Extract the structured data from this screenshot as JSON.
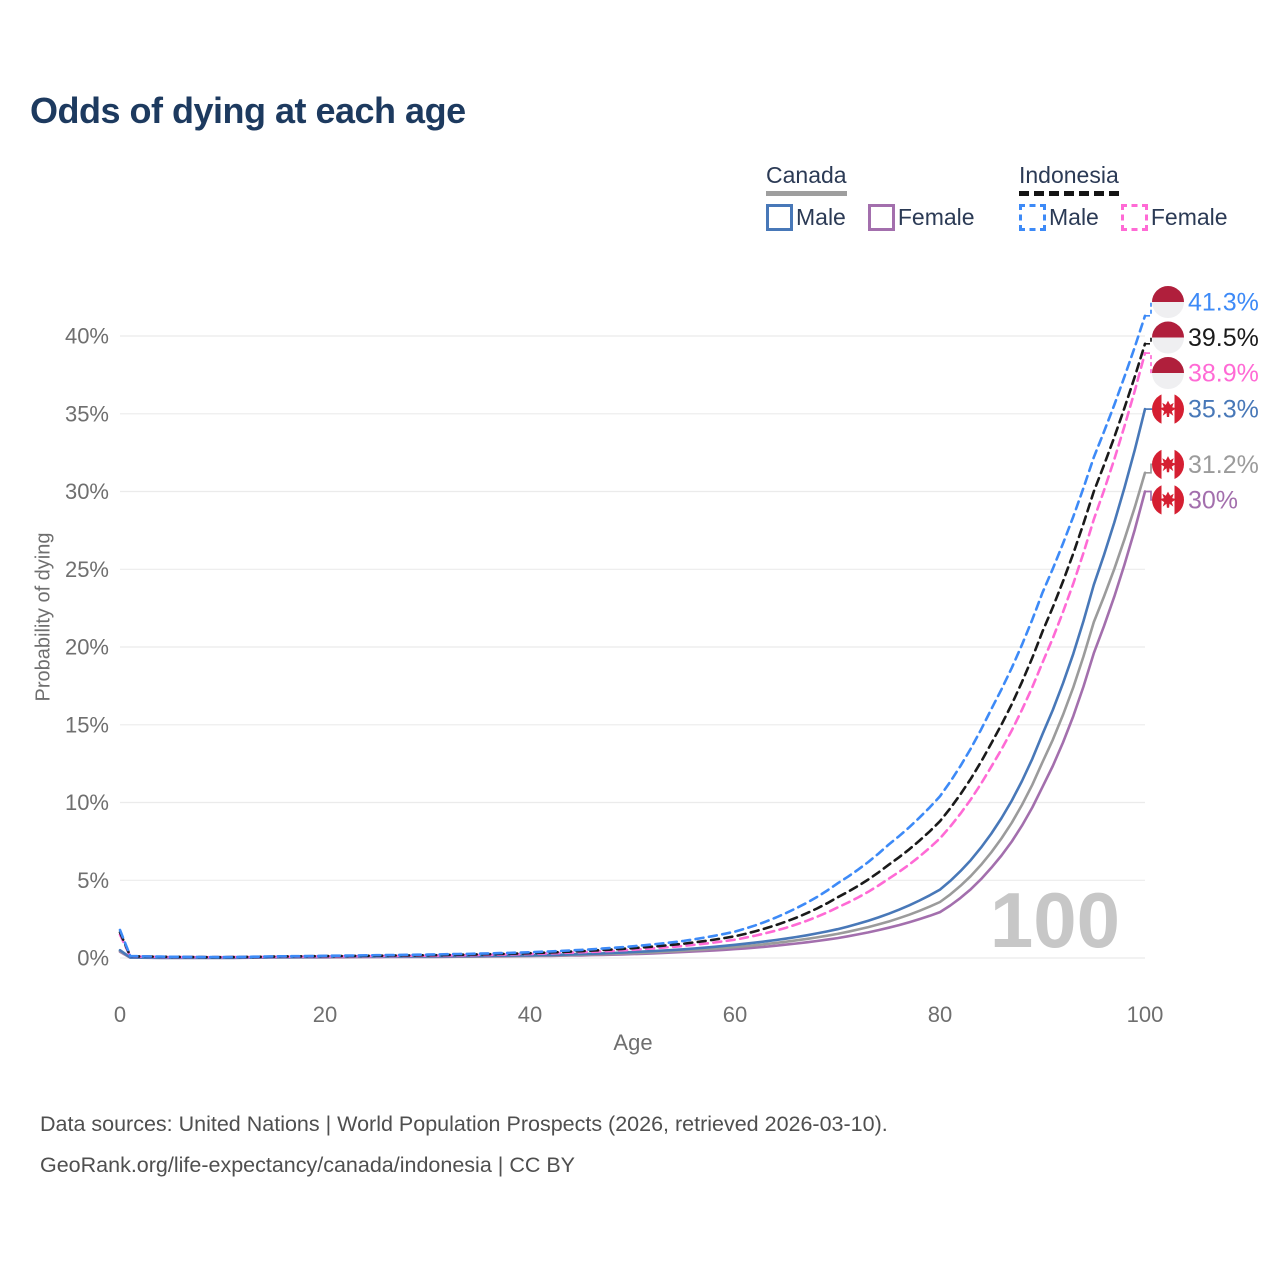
{
  "title": "Odds of dying at each age",
  "legend": {
    "groups": [
      {
        "label": "Canada",
        "line_style": "solid",
        "underline_color": "#9e9e9e",
        "items": [
          {
            "label": "Male",
            "color": "#4878b8",
            "dash": false
          },
          {
            "label": "Female",
            "color": "#a36fad",
            "dash": false
          }
        ]
      },
      {
        "label": "Indonesia",
        "line_style": "dashed",
        "underline_color": "#141414",
        "items": [
          {
            "label": "Male",
            "color": "#3d8af7",
            "dash": true
          },
          {
            "label": "Female",
            "color": "#ff6ad5",
            "dash": true
          }
        ]
      }
    ]
  },
  "watermark_age": "100",
  "footer": {
    "line1": "Data sources: United Nations | World Population Prospects (2026, retrieved 2026-03-10).",
    "line2": "GeoRank.org/life-expectancy/canada/indonesia | CC BY"
  },
  "chart_data": {
    "type": "line",
    "title": "Odds of dying at each age",
    "xlabel": "Age",
    "ylabel": "Probability of dying",
    "xlim": [
      0,
      100
    ],
    "ylim_percent": [
      0,
      42
    ],
    "grid": true,
    "legend_position": "top-right",
    "xticks": [
      0,
      20,
      40,
      60,
      80,
      100
    ],
    "ytick_values": [
      0,
      5,
      10,
      15,
      20,
      25,
      30,
      35,
      40
    ],
    "yticks": [
      "0%",
      "5%",
      "10%",
      "15%",
      "20%",
      "25%",
      "30%",
      "35%",
      "40%"
    ],
    "x": [
      0,
      1,
      5,
      10,
      15,
      20,
      25,
      30,
      35,
      40,
      45,
      50,
      55,
      60,
      65,
      70,
      75,
      80,
      85,
      90,
      95,
      100
    ],
    "series": [
      {
        "name": "Indonesia Male",
        "country": "Indonesia",
        "flag": "indonesia",
        "color": "#3d8af7",
        "dash": true,
        "end_label": "41.3%",
        "end_value": 41.3,
        "values": [
          1.8,
          0.12,
          0.08,
          0.06,
          0.1,
          0.14,
          0.18,
          0.22,
          0.28,
          0.37,
          0.52,
          0.75,
          1.1,
          1.7,
          2.9,
          4.8,
          7.3,
          10.4,
          16.0,
          23.5,
          32.2,
          41.3
        ]
      },
      {
        "name": "Indonesia",
        "country": "Indonesia",
        "flag": "indonesia",
        "color": "#1a1a1a",
        "dash": true,
        "end_label": "39.5%",
        "end_value": 39.5,
        "values": [
          1.65,
          0.11,
          0.07,
          0.05,
          0.09,
          0.12,
          0.15,
          0.18,
          0.23,
          0.31,
          0.44,
          0.63,
          0.92,
          1.4,
          2.35,
          3.9,
          6.0,
          8.8,
          13.8,
          21.0,
          30.0,
          39.5
        ]
      },
      {
        "name": "Indonesia Female",
        "country": "Indonesia",
        "flag": "indonesia",
        "color": "#ff6ad5",
        "dash": true,
        "end_label": "38.9%",
        "end_value": 38.9,
        "values": [
          1.5,
          0.1,
          0.06,
          0.05,
          0.08,
          0.1,
          0.13,
          0.15,
          0.19,
          0.26,
          0.37,
          0.53,
          0.78,
          1.18,
          1.95,
          3.25,
          5.1,
          7.7,
          12.3,
          19.0,
          28.2,
          38.9
        ]
      },
      {
        "name": "Canada Male",
        "country": "Canada",
        "flag": "canada",
        "color": "#4878b8",
        "dash": false,
        "end_label": "35.3%",
        "end_value": 35.3,
        "values": [
          0.5,
          0.03,
          0.01,
          0.01,
          0.05,
          0.08,
          0.1,
          0.11,
          0.13,
          0.17,
          0.25,
          0.38,
          0.56,
          0.85,
          1.25,
          1.85,
          2.85,
          4.4,
          8.0,
          14.4,
          24.0,
          35.3
        ]
      },
      {
        "name": "Canada",
        "country": "Canada",
        "flag": "canada",
        "color": "#9b9b9b",
        "dash": false,
        "end_label": "31.2%",
        "end_value": 31.2,
        "values": [
          0.45,
          0.03,
          0.01,
          0.01,
          0.04,
          0.06,
          0.08,
          0.09,
          0.11,
          0.14,
          0.21,
          0.31,
          0.47,
          0.7,
          1.05,
          1.55,
          2.35,
          3.6,
          6.8,
          12.6,
          21.6,
          31.2
        ]
      },
      {
        "name": "Canada Female",
        "country": "Canada",
        "flag": "canada",
        "color": "#a36fad",
        "dash": false,
        "end_label": "30%",
        "end_value": 30.0,
        "values": [
          0.4,
          0.02,
          0.01,
          0.01,
          0.03,
          0.04,
          0.06,
          0.07,
          0.09,
          0.12,
          0.17,
          0.25,
          0.39,
          0.57,
          0.86,
          1.28,
          1.95,
          2.95,
          5.8,
          11.0,
          19.6,
          30.0
        ]
      }
    ],
    "colors": {
      "grid": "#ebebeb",
      "axis_text": "#6f6f6f",
      "watermark": "#c7c7c7",
      "indonesia_flag_red": "#b01f3c",
      "canada_flag_red": "#d51f32"
    }
  }
}
